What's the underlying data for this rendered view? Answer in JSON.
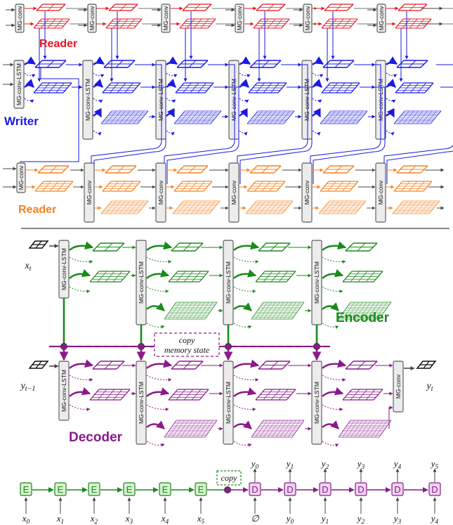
{
  "colors": {
    "reader_red": "#e8141e",
    "writer_blue": "#1a1ae0",
    "reader_orange": "#f58220",
    "encoder_green": "#1a8a1a",
    "decoder_purple": "#8a1a8a",
    "box_fill": "#ececec",
    "box_stroke": "#333333"
  },
  "top": {
    "reader_top_label": "Reader",
    "writer_label": "Writer",
    "reader_bottom_label": "Reader",
    "box_mg_conv": "MG-conv",
    "box_mg_conv_lstm": "MG-conv-LSTM"
  },
  "middle": {
    "encoder_label": "Encoder",
    "decoder_label": "Decoder",
    "box_lstm": "MG-conv-LSTM",
    "box_conv": "MG-conv",
    "copy_line1": "copy",
    "copy_line2": "memory state",
    "input_label": {
      "base": "x",
      "sub": "t"
    },
    "decoder_input_label": {
      "base": "y",
      "sub": "t−1"
    },
    "output_label": {
      "base": "y",
      "sub": "t"
    }
  },
  "bottom": {
    "enc_letter": "E",
    "dec_letter": "D",
    "copy_label": "copy",
    "inputs": [
      {
        "base": "x",
        "sub": "0"
      },
      {
        "base": "x",
        "sub": "1"
      },
      {
        "base": "x",
        "sub": "2"
      },
      {
        "base": "x",
        "sub": "3"
      },
      {
        "base": "x",
        "sub": "4"
      },
      {
        "base": "x",
        "sub": "5"
      }
    ],
    "dec_inputs": [
      {
        "base": "∅",
        "sub": ""
      },
      {
        "base": "y",
        "sub": "0"
      },
      {
        "base": "y",
        "sub": "1"
      },
      {
        "base": "y",
        "sub": "2"
      },
      {
        "base": "y",
        "sub": "3"
      },
      {
        "base": "y",
        "sub": "4"
      }
    ],
    "dec_outputs": [
      {
        "base": "y",
        "sub": "0"
      },
      {
        "base": "y",
        "sub": "1"
      },
      {
        "base": "y",
        "sub": "2"
      },
      {
        "base": "y",
        "sub": "3"
      },
      {
        "base": "y",
        "sub": "4"
      },
      {
        "base": "y",
        "sub": "5"
      }
    ]
  }
}
